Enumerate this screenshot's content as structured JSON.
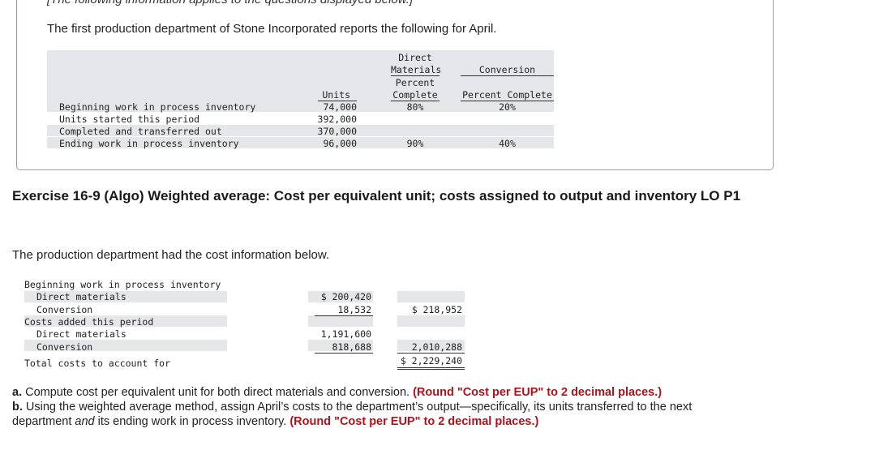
{
  "header": {
    "partial_text": "[The following information applies to the questions displayed below.]",
    "intro": "The first production department of Stone Incorporated reports the following for April."
  },
  "units_table": {
    "headers": {
      "units": "Units",
      "dm_line1": "Direct",
      "dm_line2": "Materials",
      "dm_line3": "Percent",
      "dm_line4": "Complete",
      "conv_line1": "Conversion",
      "conv_line2": "Percent Complete"
    },
    "rows": [
      {
        "label": "Beginning work in process inventory",
        "units": "74,000",
        "dm": "80%",
        "conv": "20%"
      },
      {
        "label": "Units started this period",
        "units": "392,000",
        "dm": "",
        "conv": ""
      },
      {
        "label": "Completed and transferred out",
        "units": "370,000",
        "dm": "",
        "conv": ""
      },
      {
        "label": "Ending work in process inventory",
        "units": "96,000",
        "dm": "90%",
        "conv": "40%"
      }
    ]
  },
  "exercise": {
    "title": "Exercise 16-9 (Algo) Weighted average: Cost per equivalent unit; costs assigned to output and inventory LO P1"
  },
  "cost_info": {
    "intro": "The production department had the cost information below.",
    "beginning_label": "Beginning work in process inventory",
    "beg_dm_label": "Direct materials",
    "beg_dm_value": "$ 200,420",
    "beg_conv_label": "Conversion",
    "beg_conv_value": "18,532",
    "beg_total": "$ 218,952",
    "added_label": "Costs added this period",
    "add_dm_label": "Direct materials",
    "add_dm_value": "1,191,600",
    "add_conv_label": "Conversion",
    "add_conv_value": "818,688",
    "add_total": "2,010,288",
    "total_label": "Total costs to account for",
    "total_value": "$ 2,229,240"
  },
  "questions": {
    "a_label": "a.",
    "a_text": "Compute cost per equivalent unit for both direct materials and conversion.",
    "a_note": "(Round \"Cost per EUP\" to 2 decimal places.)",
    "b_label": "b.",
    "b_text1": "Using the weighted average method, assign April’s costs to the department’s output—specifically, its units transferred to the next",
    "b_text2a": "department",
    "b_text2_em": "and",
    "b_text2b": "its ending work in process inventory.",
    "b_note": "(Round \"Cost per EUP\" to 2 decimal places.)"
  }
}
